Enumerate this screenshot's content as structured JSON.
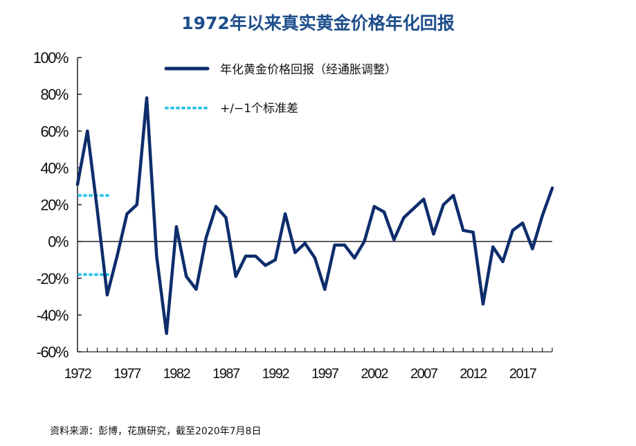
{
  "title": "1972年以来真实黄金价格年化回报",
  "source": "资料来源：彭博，花旗研究，截至2020年7月8日",
  "chart_data": {
    "type": "line",
    "title": "1972年以来真实黄金价格年化回报",
    "x_tick_labels": [
      "1972",
      "1977",
      "1982",
      "1987",
      "1992",
      "1997",
      "2002",
      "2007",
      "2012",
      "2017"
    ],
    "y_tick_labels": [
      "100%",
      "80%",
      "60%",
      "40%",
      "20%",
      "0%",
      "-20%",
      "-40%",
      "-60%"
    ],
    "y_ticks": [
      100,
      80,
      60,
      40,
      20,
      0,
      -20,
      -40,
      -60
    ],
    "ylim": [
      -60,
      100
    ],
    "xlim": [
      1972,
      2020
    ],
    "grid": false,
    "legend_position": "top",
    "series": [
      {
        "name": "年化黄金价格回报（经通胀调整）",
        "style": "solid",
        "color": "#0d2d6b",
        "x": [
          1972,
          1973,
          1974,
          1975,
          1976,
          1977,
          1978,
          1979,
          1980,
          1981,
          1982,
          1983,
          1984,
          1985,
          1986,
          1987,
          1988,
          1989,
          1990,
          1991,
          1992,
          1993,
          1994,
          1995,
          1996,
          1997,
          1998,
          1999,
          2000,
          2001,
          2002,
          2003,
          2004,
          2005,
          2006,
          2007,
          2008,
          2009,
          2010,
          2011,
          2012,
          2013,
          2014,
          2015,
          2016,
          2017,
          2018,
          2019,
          2020
        ],
        "values": [
          31,
          60,
          17,
          -29,
          -8,
          15,
          20,
          78,
          -8,
          -50,
          8,
          -19,
          -26,
          2,
          19,
          13,
          -19,
          -8,
          -8,
          -13,
          -10,
          15,
          -6,
          -1,
          -9,
          -26,
          -2,
          -2,
          -9,
          0,
          19,
          16,
          1,
          13,
          18,
          23,
          4,
          20,
          25,
          6,
          5,
          -34,
          -3,
          -11,
          6,
          10,
          -4,
          14,
          29
        ]
      },
      {
        "name": "+/−1个标准差",
        "style": "dotted",
        "color": "#2ec4e6",
        "bands": [
          25,
          -18
        ]
      }
    ]
  }
}
